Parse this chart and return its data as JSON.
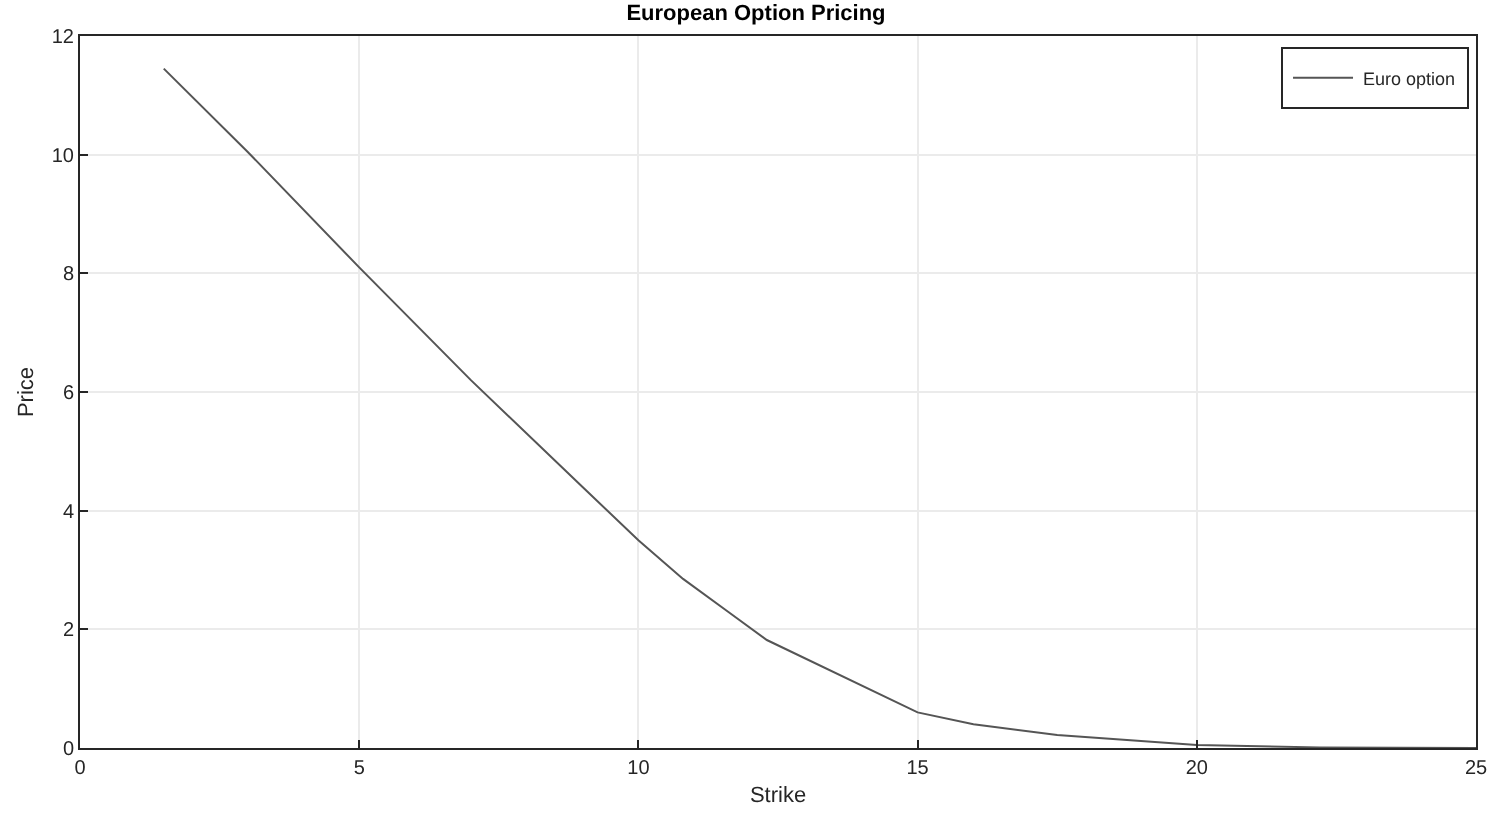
{
  "chart_data": {
    "type": "line",
    "title": "European Option Pricing",
    "xlabel": "Strike",
    "ylabel": "Price",
    "series": [
      {
        "name": "Euro option",
        "color": "#555555",
        "x": [
          1.5,
          3,
          5,
          7,
          9,
          10,
          10.8,
          11.6,
          12.3,
          15,
          16,
          17.5,
          20,
          22.2,
          25
        ],
        "values": [
          11.45,
          10.05,
          8.1,
          6.2,
          4.4,
          3.5,
          2.85,
          2.3,
          1.82,
          0.6,
          0.4,
          0.22,
          0.05,
          0.01,
          0
        ]
      }
    ],
    "xlim": [
      0,
      25
    ],
    "xticks": [
      0,
      5,
      10,
      15,
      20,
      25
    ],
    "ylim": [
      0,
      12
    ],
    "yticks": [
      0,
      2,
      4,
      6,
      8,
      10,
      12
    ],
    "grid": true,
    "legend": "top right",
    "line_style": "solid",
    "marker": "none"
  }
}
